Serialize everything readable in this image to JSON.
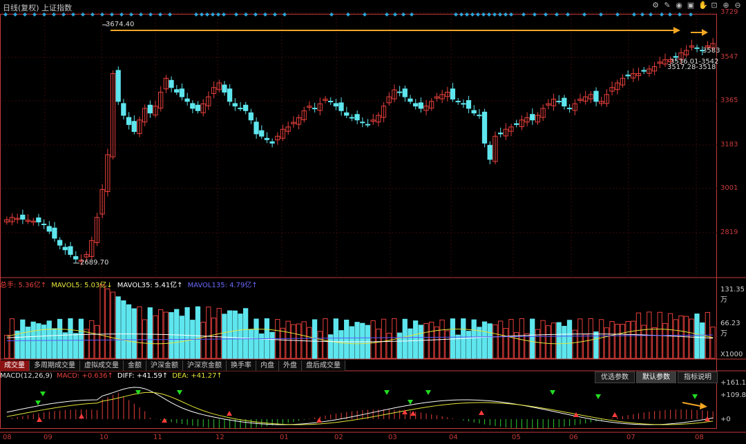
{
  "header": {
    "title": "日线(复权)  上证指数",
    "tools": [
      "settings-icon",
      "pen-icon",
      "eye-icon",
      "save-icon",
      "hand-icon",
      "lock-icon",
      "zoom-in-icon",
      "zoom-out-icon"
    ]
  },
  "colors": {
    "up": "#e8403c",
    "down": "#5ee6ee",
    "bg": "#000000",
    "grid": "#3a0d0d",
    "ma5": "#e6e63a",
    "ma35": "#ffffff",
    "ma135": "#5a5aff",
    "arrow": "#f5a623",
    "axis": "#c83a3a",
    "macd_up": "#e8403c",
    "macd_down": "#33cc33"
  },
  "price_labels": {
    "high": "3674.40",
    "low": "2689.70",
    "r1": "3583",
    "r2": "3536.01-3542",
    "r3": "3517.28-3518"
  },
  "volume_header": {
    "zongshou": "总手: 5.36亿↑",
    "mavol5": "MAVOL5: 5.03亿↓",
    "mavol35": "MAVOL35: 5.41亿↑",
    "mavol135": "MAVOL135: 4.79亿↑"
  },
  "tabs": [
    "成交量",
    "多周期成交量",
    "虚拟成交量",
    "金额",
    "沪深金额",
    "沪深京金额",
    "换手率",
    "内盘",
    "外盘",
    "盘后成交量"
  ],
  "macd_header": {
    "name": "MACD(12,26,9)",
    "macd": "MACD: +0.636↑",
    "diff": "DIFF: +41.59↑",
    "dea": "DEA: +41.27↑"
  },
  "macd_buttons": [
    "优选参数",
    "默认参数",
    "指标说明"
  ],
  "chart_data": {
    "type": "candlestick",
    "price_axis": {
      "ticks": [
        "3729",
        "3547",
        "3365",
        "3183",
        "3001",
        "2819"
      ],
      "range": [
        2650,
        3740
      ]
    },
    "volume_axis": {
      "ticks": [
        "131.35万",
        "66.23万",
        "X1000"
      ]
    },
    "macd_axis": {
      "ticks": [
        "+161.1",
        "+109.8",
        "+0"
      ]
    },
    "x_labels": [
      "08",
      "09",
      "10",
      "11",
      "12",
      "01",
      "02",
      "03",
      "04",
      "05",
      "06",
      "07",
      "08"
    ],
    "closes": [
      2870,
      2880,
      2876,
      2872,
      2868,
      2864,
      2860,
      2850,
      2820,
      2790,
      2760,
      2740,
      2720,
      2700,
      2695,
      2720,
      2780,
      2880,
      3000,
      3150,
      3500,
      3380,
      3320,
      3280,
      3250,
      3300,
      3350,
      3330,
      3360,
      3420,
      3480,
      3440,
      3420,
      3400,
      3380,
      3350,
      3340,
      3370,
      3400,
      3440,
      3460,
      3420,
      3380,
      3360,
      3350,
      3340,
      3300,
      3240,
      3230,
      3215,
      3200,
      3230,
      3260,
      3270,
      3290,
      3310,
      3340,
      3360,
      3350,
      3370,
      3390,
      3380,
      3360,
      3340,
      3320,
      3310,
      3300,
      3290,
      3280,
      3300,
      3320,
      3360,
      3400,
      3430,
      3420,
      3400,
      3380,
      3360,
      3350,
      3360,
      3380,
      3400,
      3410,
      3420,
      3390,
      3380,
      3370,
      3350,
      3330,
      3320,
      3200,
      3130,
      3230,
      3240,
      3260,
      3270,
      3280,
      3300,
      3310,
      3300,
      3320,
      3350,
      3370,
      3390,
      3380,
      3360,
      3350,
      3370,
      3390,
      3400,
      3410,
      3380,
      3380,
      3410,
      3440,
      3460,
      3480,
      3490,
      3500,
      3500,
      3510,
      3520,
      3530,
      3550,
      3560,
      3560,
      3570,
      3590,
      3600,
      3620,
      3610,
      3600,
      3620,
      3630
    ]
  }
}
